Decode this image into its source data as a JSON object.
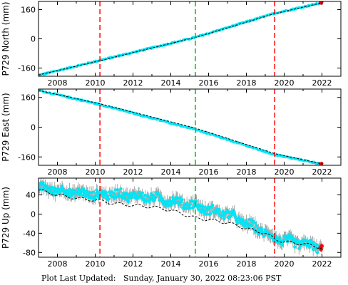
{
  "footer": {
    "label": "Plot Last Updated:",
    "timestamp": "Sunday, January 30, 2022 08:23:06 PST"
  },
  "colors": {
    "observed": "#00e5f5",
    "error_bars": "#a9a9a9",
    "model": "#000000",
    "event_red": "#ff0000",
    "event_green": "#00c800",
    "latest_points": "#ff0000"
  },
  "chart_data": [
    {
      "type": "scatter",
      "ylabel": "P729 North (mm)",
      "xlim": [
        2007.0,
        2023.0
      ],
      "ylim": [
        -205,
        205
      ],
      "xticks": [
        2008,
        2010,
        2012,
        2014,
        2016,
        2018,
        2020,
        2022
      ],
      "yticks": [
        -160,
        0,
        160
      ],
      "grid": false,
      "vlines": [
        {
          "x": 2010.25,
          "color": "red",
          "style": "dashed"
        },
        {
          "x": 2015.3,
          "color": "green",
          "style": "dashed"
        },
        {
          "x": 2019.5,
          "color": "red",
          "style": "dashed"
        }
      ],
      "series": [
        {
          "role": "observed",
          "x": [
            2007.0,
            2010.25,
            2015.3,
            2019.5,
            2022.0
          ],
          "y": [
            -200,
            -118,
            8,
            140,
            198
          ],
          "scatter": 4
        },
        {
          "role": "model",
          "x": [
            2007.0,
            2010.25,
            2015.3,
            2019.5,
            2022.0
          ],
          "y": [
            -198,
            -120,
            8,
            138,
            197
          ]
        }
      ]
    },
    {
      "type": "scatter",
      "ylabel": "P729 East (mm)",
      "xlim": [
        2007.0,
        2023.0
      ],
      "ylim": [
        -205,
        205
      ],
      "xticks": [
        2008,
        2010,
        2012,
        2014,
        2016,
        2018,
        2020,
        2022
      ],
      "yticks": [
        -160,
        0,
        160
      ],
      "grid": false,
      "vlines": [
        {
          "x": 2010.25,
          "color": "red",
          "style": "dashed"
        },
        {
          "x": 2015.3,
          "color": "green",
          "style": "dashed"
        },
        {
          "x": 2019.5,
          "color": "red",
          "style": "dashed"
        }
      ],
      "series": [
        {
          "role": "observed",
          "x": [
            2007.0,
            2010.25,
            2015.3,
            2019.5,
            2022.0
          ],
          "y": [
            198,
            122,
            -12,
            -148,
            -198
          ],
          "scatter": 4
        },
        {
          "role": "model",
          "x": [
            2007.0,
            2010.25,
            2015.3,
            2019.5,
            2022.0
          ],
          "y": [
            198,
            126,
            -5,
            -142,
            -197
          ]
        }
      ]
    },
    {
      "type": "scatter",
      "ylabel": "P729 Up (mm)",
      "xlim": [
        2007.0,
        2023.0
      ],
      "ylim": [
        -90,
        75
      ],
      "xticks": [
        2008,
        2010,
        2012,
        2014,
        2016,
        2018,
        2020,
        2022
      ],
      "yticks": [
        -80,
        -40,
        0,
        40
      ],
      "grid": false,
      "vlines": [
        {
          "x": 2010.25,
          "color": "red",
          "style": "dashed"
        },
        {
          "x": 2015.3,
          "color": "green",
          "style": "dashed"
        },
        {
          "x": 2019.5,
          "color": "red",
          "style": "dashed"
        }
      ],
      "series": [
        {
          "role": "observed",
          "x": [
            2007.0,
            2008.0,
            2009.0,
            2010.25,
            2011.0,
            2012.0,
            2013.0,
            2014.0,
            2015.3,
            2016.0,
            2017.0,
            2018.0,
            2019.0,
            2019.5,
            2020.0,
            2021.0,
            2022.0
          ],
          "y": [
            55,
            50,
            44,
            40,
            42,
            38,
            35,
            28,
            18,
            8,
            0,
            -20,
            -38,
            -50,
            -55,
            -62,
            -70
          ],
          "scatter": 9
        },
        {
          "role": "model",
          "x": [
            2007.0,
            2008.0,
            2009.0,
            2010.25,
            2011.0,
            2012.0,
            2013.0,
            2014.0,
            2015.3,
            2016.0,
            2017.0,
            2018.0,
            2019.0,
            2019.5,
            2020.0,
            2021.0,
            2022.0
          ],
          "y": [
            50,
            40,
            33,
            28,
            22,
            18,
            15,
            8,
            -8,
            -12,
            -18,
            -30,
            -40,
            -52,
            -58,
            -62,
            -70
          ]
        }
      ]
    }
  ]
}
